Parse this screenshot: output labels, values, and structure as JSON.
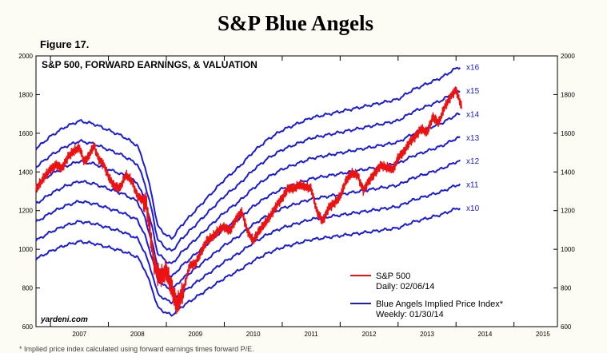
{
  "title": "S&P Blue Angels",
  "figure_label": "Figure 17.",
  "footnote": "* Implied price index calculated using forward earnings times forward P/E.",
  "chart_data": {
    "type": "line",
    "title": "S&P 500, FORWARD EARNINGS, & VALUATION",
    "source": "yardeni.com",
    "xlim": [
      2006.75,
      2015.75
    ],
    "ylim": [
      600,
      2000
    ],
    "x_ticks": [
      2007,
      2008,
      2009,
      2010,
      2011,
      2012,
      2013,
      2014,
      2015
    ],
    "y_ticks": [
      600,
      800,
      1000,
      1200,
      1400,
      1600,
      1800,
      2000
    ],
    "y_tick_labels": [
      "600",
      "800",
      "1000",
      "1200",
      "1400",
      "1600",
      "1800",
      "2000"
    ],
    "legend_position": "bottom-right",
    "colors": {
      "sp500": "#ee1111",
      "angels": "#1a1ae6"
    },
    "sp500": {
      "legend_name": "S&P 500",
      "legend_detail": "Daily: 02/06/14",
      "x": [
        2006.75,
        2006.9,
        2007.0,
        2007.1,
        2007.2,
        2007.3,
        2007.4,
        2007.5,
        2007.58,
        2007.65,
        2007.75,
        2007.83,
        2007.92,
        2008.0,
        2008.1,
        2008.2,
        2008.3,
        2008.4,
        2008.5,
        2008.58,
        2008.65,
        2008.72,
        2008.78,
        2008.85,
        2008.92,
        2009.0,
        2009.1,
        2009.18,
        2009.3,
        2009.4,
        2009.5,
        2009.6,
        2009.7,
        2009.8,
        2009.92,
        2010.0,
        2010.1,
        2010.2,
        2010.3,
        2010.4,
        2010.5,
        2010.6,
        2010.7,
        2010.8,
        2010.92,
        2011.0,
        2011.1,
        2011.2,
        2011.3,
        2011.4,
        2011.5,
        2011.6,
        2011.7,
        2011.8,
        2011.92,
        2012.0,
        2012.1,
        2012.2,
        2012.3,
        2012.4,
        2012.5,
        2012.6,
        2012.7,
        2012.8,
        2012.92,
        2013.0,
        2013.1,
        2013.2,
        2013.3,
        2013.4,
        2013.5,
        2013.6,
        2013.7,
        2013.8,
        2013.92,
        2014.0,
        2014.1
      ],
      "y": [
        1310,
        1380,
        1415,
        1440,
        1420,
        1480,
        1510,
        1530,
        1455,
        1480,
        1540,
        1470,
        1440,
        1380,
        1330,
        1320,
        1390,
        1360,
        1280,
        1260,
        1250,
        1100,
        950,
        880,
        870,
        900,
        800,
        720,
        800,
        920,
        930,
        990,
        1050,
        1070,
        1110,
        1120,
        1100,
        1160,
        1200,
        1100,
        1050,
        1100,
        1140,
        1180,
        1240,
        1270,
        1320,
        1320,
        1340,
        1330,
        1320,
        1200,
        1150,
        1220,
        1250,
        1280,
        1360,
        1400,
        1390,
        1310,
        1360,
        1400,
        1440,
        1430,
        1420,
        1480,
        1510,
        1560,
        1590,
        1630,
        1610,
        1690,
        1660,
        1740,
        1800,
        1830,
        1740
      ]
    },
    "angels": {
      "legend_name": "Blue Angels Implied Price Index*",
      "legend_detail": "Weekly: 01/30/14",
      "multiples": [
        10,
        11,
        12,
        13,
        14,
        15,
        16
      ],
      "multiple_labels": [
        "x10",
        "x11",
        "x12",
        "x13",
        "x14",
        "x15",
        "x16"
      ],
      "forward_eps_x": [
        2006.75,
        2007.0,
        2007.25,
        2007.5,
        2007.75,
        2008.0,
        2008.25,
        2008.5,
        2008.62,
        2008.75,
        2008.85,
        2009.0,
        2009.1,
        2009.25,
        2009.5,
        2009.75,
        2010.0,
        2010.25,
        2010.5,
        2010.75,
        2011.0,
        2011.25,
        2011.5,
        2011.75,
        2012.0,
        2012.25,
        2012.5,
        2012.75,
        2013.0,
        2013.25,
        2013.5,
        2013.75,
        2014.0,
        2014.08
      ],
      "forward_eps_y": [
        95,
        99,
        102,
        104,
        103,
        101,
        99,
        96,
        90,
        80,
        70,
        67,
        66,
        70,
        75,
        80,
        85,
        89,
        94,
        98,
        101,
        103,
        105,
        106,
        107,
        108,
        109,
        110,
        111,
        114,
        116,
        118,
        121,
        121.5
      ]
    }
  }
}
